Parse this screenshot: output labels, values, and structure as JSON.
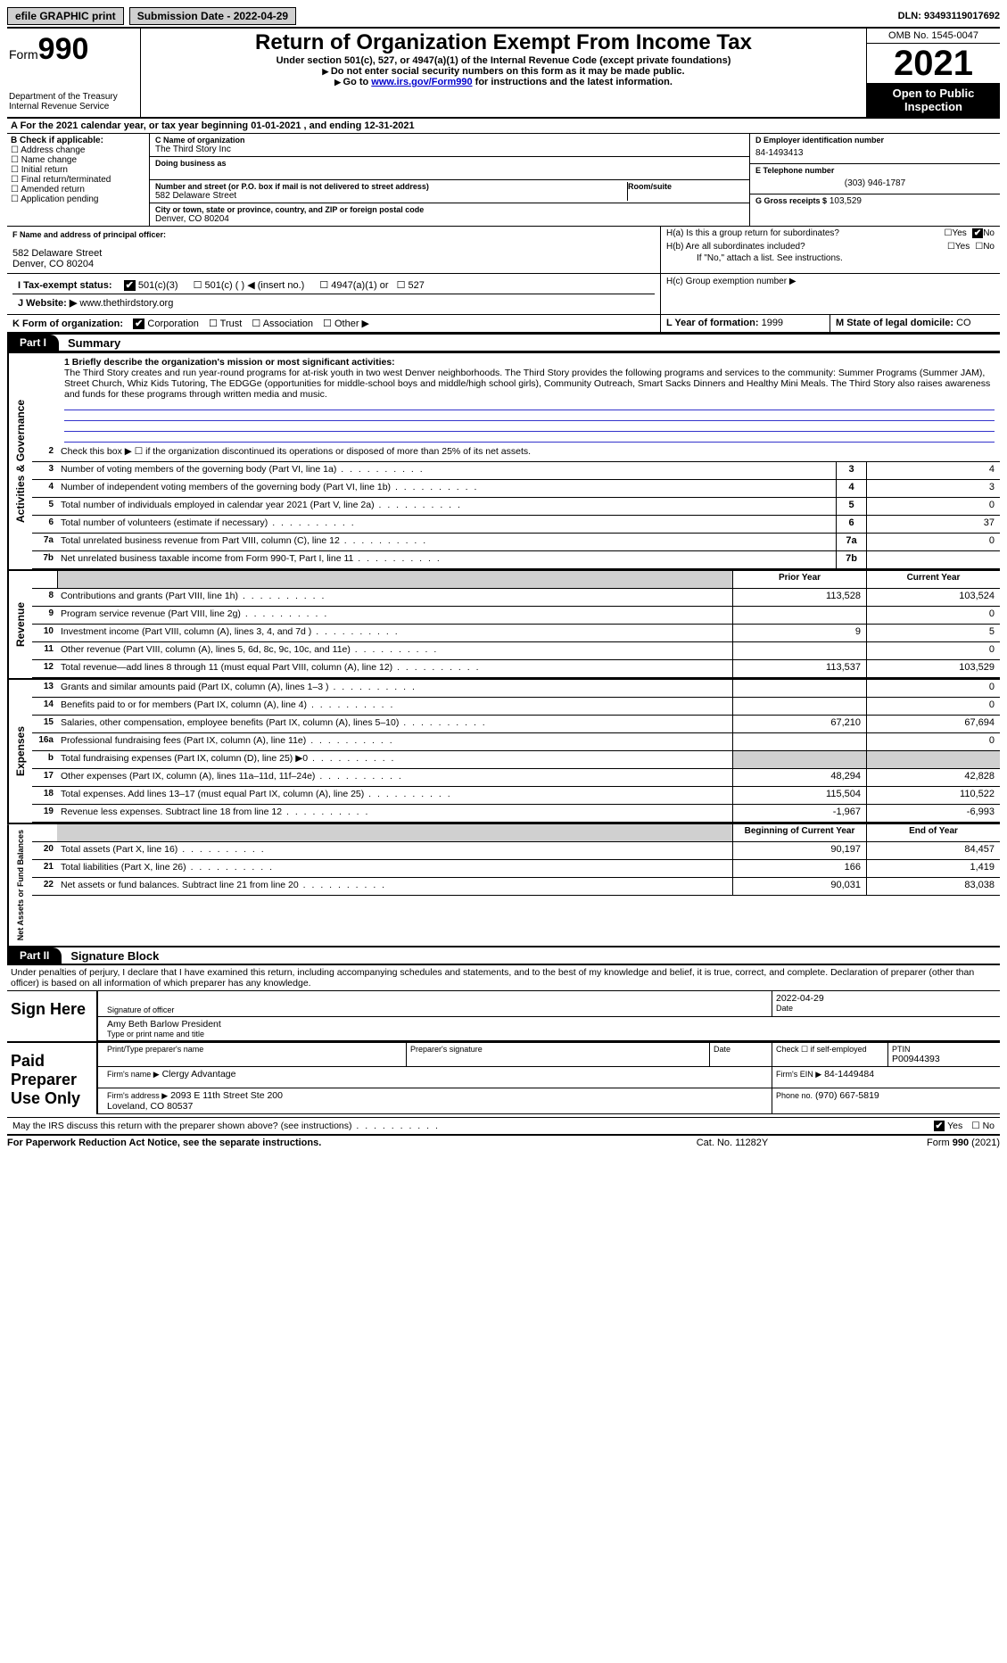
{
  "topbar": {
    "efile": "efile GRAPHIC print",
    "submission": "Submission Date - 2022-04-29",
    "dln": "DLN: 93493119017692"
  },
  "header": {
    "form_word": "Form",
    "form_num": "990",
    "dept": "Department of the Treasury\nInternal Revenue Service",
    "title": "Return of Organization Exempt From Income Tax",
    "sub1": "Under section 501(c), 527, or 4947(a)(1) of the Internal Revenue Code (except private foundations)",
    "sub2": "Do not enter social security numbers on this form as it may be made public.",
    "sub3_pre": "Go to ",
    "sub3_link": "www.irs.gov/Form990",
    "sub3_post": " for instructions and the latest information.",
    "omb": "OMB No. 1545-0047",
    "year": "2021",
    "open": "Open to Public Inspection"
  },
  "rowA": "A For the 2021 calendar year, or tax year beginning 01-01-2021     , and ending 12-31-2021",
  "boxB": {
    "hdr": "B Check if applicable:",
    "items": [
      "Address change",
      "Name change",
      "Initial return",
      "Final return/terminated",
      "Amended return",
      "Application pending"
    ]
  },
  "boxC": {
    "name_lbl": "C Name of organization",
    "name": "The Third Story Inc",
    "dba_lbl": "Doing business as",
    "addr_lbl": "Number and street (or P.O. box if mail is not delivered to street address)",
    "room_lbl": "Room/suite",
    "addr": "582 Delaware Street",
    "city_lbl": "City or town, state or province, country, and ZIP or foreign postal code",
    "city": "Denver, CO  80204"
  },
  "boxD": {
    "lbl": "D Employer identification number",
    "val": "84-1493413"
  },
  "boxE": {
    "lbl": "E Telephone number",
    "val": "(303) 946-1787"
  },
  "boxG": {
    "lbl": "G Gross receipts $",
    "val": "103,529"
  },
  "boxF": {
    "lbl": "F Name and address of principal officer:",
    "addr1": "582 Delaware Street",
    "addr2": "Denver, CO  80204"
  },
  "boxH": {
    "a": "H(a)  Is this a group return for subordinates?",
    "b": "H(b)  Are all subordinates included?",
    "b_note": "If \"No,\" attach a list. See instructions.",
    "c": "H(c)  Group exemption number ▶",
    "yes": "Yes",
    "no": "No"
  },
  "rowI": {
    "lbl": "I   Tax-exempt status:",
    "opts": [
      "501(c)(3)",
      "501(c) (  ) ◀ (insert no.)",
      "4947(a)(1) or",
      "527"
    ]
  },
  "rowJ": {
    "lbl": "J   Website: ▶",
    "val": "www.thethirdstory.org"
  },
  "rowK": {
    "lbl": "K Form of organization:",
    "opts": [
      "Corporation",
      "Trust",
      "Association",
      "Other ▶"
    ]
  },
  "rowL": {
    "lbl": "L Year of formation:",
    "val": "1999"
  },
  "rowM": {
    "lbl": "M State of legal domicile:",
    "val": "CO"
  },
  "part1": {
    "tab": "Part I",
    "title": "Summary"
  },
  "part2": {
    "tab": "Part II",
    "title": "Signature Block"
  },
  "mission_lbl": "1  Briefly describe the organization's mission or most significant activities:",
  "mission": "The Third Story creates and run year-round programs for at-risk youth in two west Denver neighborhoods. The Third Story provides the following programs and services to the community: Summer Programs (Summer JAM), Street Church, Whiz Kids Tutoring, The EDGGe (opportunities for middle-school boys and middle/high school girls), Community Outreach, Smart Sacks Dinners and Healthy Mini Meals. The Third Story also raises awareness and funds for these programs through written media and music.",
  "line2": "Check this box ▶ ☐  if the organization discontinued its operations or disposed of more than 25% of its net assets.",
  "sections": {
    "gov": "Activities & Governance",
    "rev": "Revenue",
    "exp": "Expenses",
    "net": "Net Assets or Fund Balances"
  },
  "gov_lines": [
    {
      "n": "3",
      "d": "Number of voting members of the governing body (Part VI, line 1a)",
      "v": "4"
    },
    {
      "n": "4",
      "d": "Number of independent voting members of the governing body (Part VI, line 1b)",
      "v": "3"
    },
    {
      "n": "5",
      "d": "Total number of individuals employed in calendar year 2021 (Part V, line 2a)",
      "v": "0"
    },
    {
      "n": "6",
      "d": "Total number of volunteers (estimate if necessary)",
      "v": "37"
    },
    {
      "n": "7a",
      "d": "Total unrelated business revenue from Part VIII, column (C), line 12",
      "v": "0"
    },
    {
      "n": "7b",
      "d": "Net unrelated business taxable income from Form 990-T, Part I, line 11",
      "v": ""
    }
  ],
  "col_hdrs": {
    "prior": "Prior Year",
    "current": "Current Year",
    "boy": "Beginning of Current Year",
    "eoy": "End of Year"
  },
  "rev_lines": [
    {
      "n": "8",
      "d": "Contributions and grants (Part VIII, line 1h)",
      "p": "113,528",
      "c": "103,524"
    },
    {
      "n": "9",
      "d": "Program service revenue (Part VIII, line 2g)",
      "p": "",
      "c": "0"
    },
    {
      "n": "10",
      "d": "Investment income (Part VIII, column (A), lines 3, 4, and 7d )",
      "p": "9",
      "c": "5"
    },
    {
      "n": "11",
      "d": "Other revenue (Part VIII, column (A), lines 5, 6d, 8c, 9c, 10c, and 11e)",
      "p": "",
      "c": "0"
    },
    {
      "n": "12",
      "d": "Total revenue—add lines 8 through 11 (must equal Part VIII, column (A), line 12)",
      "p": "113,537",
      "c": "103,529"
    }
  ],
  "exp_lines": [
    {
      "n": "13",
      "d": "Grants and similar amounts paid (Part IX, column (A), lines 1–3 )",
      "p": "",
      "c": "0"
    },
    {
      "n": "14",
      "d": "Benefits paid to or for members (Part IX, column (A), line 4)",
      "p": "",
      "c": "0"
    },
    {
      "n": "15",
      "d": "Salaries, other compensation, employee benefits (Part IX, column (A), lines 5–10)",
      "p": "67,210",
      "c": "67,694"
    },
    {
      "n": "16a",
      "d": "Professional fundraising fees (Part IX, column (A), line 11e)",
      "p": "",
      "c": "0"
    },
    {
      "n": "b",
      "d": "Total fundraising expenses (Part IX, column (D), line 25) ▶0",
      "p": "__shade__",
      "c": "__shade__"
    },
    {
      "n": "17",
      "d": "Other expenses (Part IX, column (A), lines 11a–11d, 11f–24e)",
      "p": "48,294",
      "c": "42,828"
    },
    {
      "n": "18",
      "d": "Total expenses. Add lines 13–17 (must equal Part IX, column (A), line 25)",
      "p": "115,504",
      "c": "110,522"
    },
    {
      "n": "19",
      "d": "Revenue less expenses. Subtract line 18 from line 12",
      "p": "-1,967",
      "c": "-6,993"
    }
  ],
  "net_lines": [
    {
      "n": "20",
      "d": "Total assets (Part X, line 16)",
      "p": "90,197",
      "c": "84,457"
    },
    {
      "n": "21",
      "d": "Total liabilities (Part X, line 26)",
      "p": "166",
      "c": "1,419"
    },
    {
      "n": "22",
      "d": "Net assets or fund balances. Subtract line 21 from line 20",
      "p": "90,031",
      "c": "83,038"
    }
  ],
  "sig": {
    "decl": "Under penalties of perjury, I declare that I have examined this return, including accompanying schedules and statements, and to the best of my knowledge and belief, it is true, correct, and complete. Declaration of preparer (other than officer) is based on all information of which preparer has any knowledge.",
    "sign_here": "Sign Here",
    "sig_officer": "Signature of officer",
    "date": "Date",
    "date_val": "2022-04-29",
    "name_title": "Amy Beth Barlow  President",
    "type_name": "Type or print name and title",
    "paid": "Paid Preparer Use Only",
    "prep_name_lbl": "Print/Type preparer's name",
    "prep_sig_lbl": "Preparer's signature",
    "check_self": "Check ☐ if self-employed",
    "ptin_lbl": "PTIN",
    "ptin": "P00944393",
    "firm_name_lbl": "Firm's name ▶",
    "firm_name": "Clergy Advantage",
    "firm_ein_lbl": "Firm's EIN ▶",
    "firm_ein": "84-1449484",
    "firm_addr_lbl": "Firm's address ▶",
    "firm_addr": "2093 E 11th Street Ste 200\nLoveland, CO  80537",
    "phone_lbl": "Phone no.",
    "phone": "(970) 667-5819",
    "may_irs": "May the IRS discuss this return with the preparer shown above? (see instructions)"
  },
  "footer": {
    "left": "For Paperwork Reduction Act Notice, see the separate instructions.",
    "mid": "Cat. No. 11282Y",
    "right": "Form 990 (2021)"
  }
}
